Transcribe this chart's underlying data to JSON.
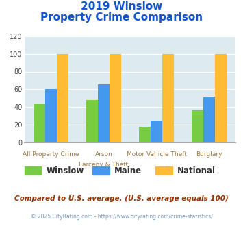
{
  "title_line1": "2019 Winslow",
  "title_line2": "Property Crime Comparison",
  "cat_labels_line1": [
    "All Property Crime",
    "Arson",
    "Motor Vehicle Theft",
    "Burglary"
  ],
  "cat_labels_line2": [
    "",
    "Larceny & Theft",
    "",
    ""
  ],
  "series": {
    "Winslow": [
      43,
      48,
      18,
      36
    ],
    "Maine": [
      60,
      66,
      25,
      52
    ],
    "National": [
      100,
      100,
      100,
      100
    ]
  },
  "colors": {
    "Winslow": "#77cc44",
    "Maine": "#4499ee",
    "National": "#ffbb33"
  },
  "ylim": [
    0,
    120
  ],
  "yticks": [
    0,
    20,
    40,
    60,
    80,
    100,
    120
  ],
  "plot_bg_color": "#ddeaf0",
  "title_color": "#1155cc",
  "label_color": "#997744",
  "subtitle_note": "Compared to U.S. average. (U.S. average equals 100)",
  "footer": "© 2025 CityRating.com - https://www.cityrating.com/crime-statistics/",
  "subtitle_color": "#993300",
  "footer_color": "#7799bb"
}
